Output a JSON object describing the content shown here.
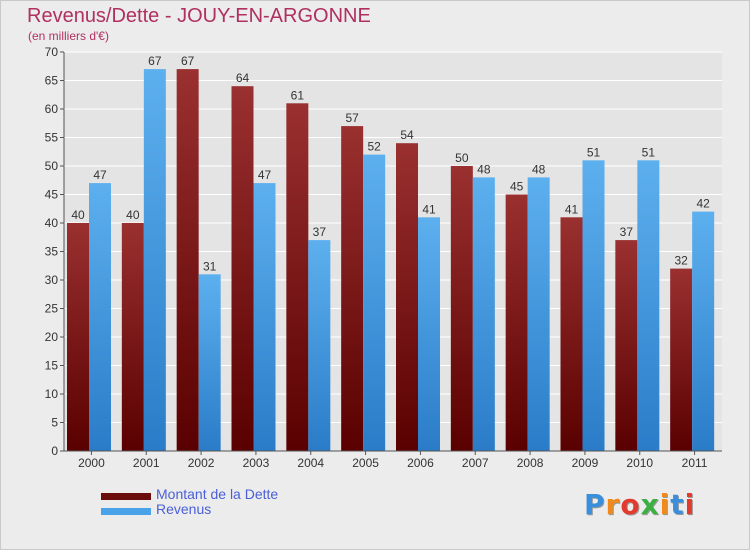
{
  "title": "Revenus/Dette - JOUY-EN-ARGONNE",
  "subtitle": "(en milliers d'€)",
  "colors": {
    "dette": "#7a1a1a",
    "revenus": "#3a8fdc",
    "title": "#b03060",
    "legend_text": "#4a5fd6"
  },
  "legend": [
    {
      "label": "Montant de la Dette",
      "color": "#6b0d0d"
    },
    {
      "label": "Revenus",
      "color": "#4aa3e8"
    }
  ],
  "logo": {
    "text": "Proxiti",
    "letters": [
      "P",
      "r",
      "o",
      "x",
      "i",
      "t",
      "i"
    ],
    "colors": [
      "#3a8fdc",
      "#f08a1c",
      "#e23b2e",
      "#3cb043",
      "#f08a1c",
      "#3a8fdc",
      "#e23b2e"
    ]
  },
  "chart_data": {
    "type": "bar",
    "title": "Revenus/Dette - JOUY-EN-ARGONNE",
    "subtitle": "(en milliers d'€)",
    "categories": [
      "2000",
      "2001",
      "2002",
      "2003",
      "2004",
      "2005",
      "2006",
      "2007",
      "2008",
      "2009",
      "2010",
      "2011"
    ],
    "series": [
      {
        "name": "Montant de la Dette",
        "values": [
          40,
          40,
          67,
          64,
          61,
          57,
          54,
          50,
          45,
          41,
          37,
          32
        ]
      },
      {
        "name": "Revenus",
        "values": [
          47,
          67,
          31,
          47,
          37,
          52,
          41,
          48,
          48,
          51,
          51,
          42
        ]
      }
    ],
    "ylim": [
      0,
      70
    ],
    "yticks": [
      0,
      5,
      10,
      15,
      20,
      25,
      30,
      35,
      40,
      45,
      50,
      55,
      60,
      65,
      70
    ],
    "grid": true,
    "legend_position": "bottom-left"
  }
}
